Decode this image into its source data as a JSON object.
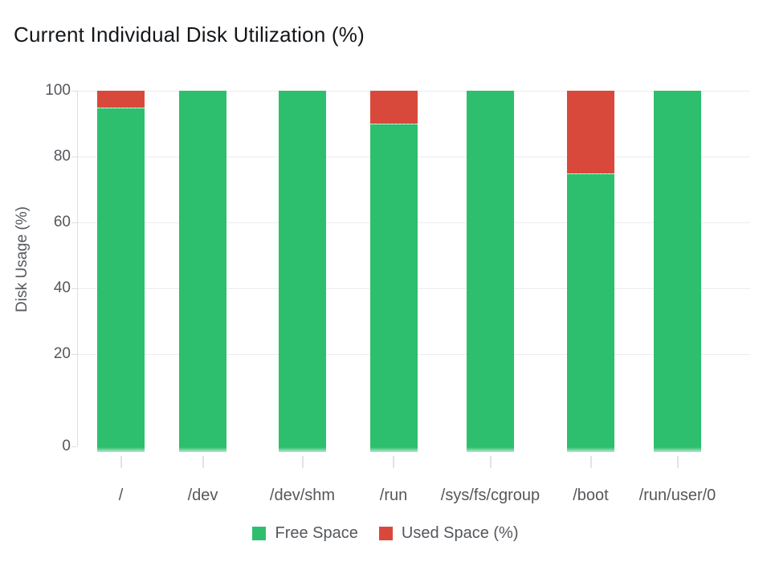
{
  "title": "Current Individual Disk Utilization (%)",
  "chart_data": {
    "type": "bar",
    "stacked": true,
    "title": "Current Individual Disk Utilization (%)",
    "categories": [
      "/",
      "/dev",
      "/dev/shm",
      "/run",
      "/sys/fs/cgroup",
      "/boot",
      "/run/user/0"
    ],
    "series": [
      {
        "name": "Free Space",
        "color": "#2dbf6d",
        "values": [
          95,
          100,
          100,
          90,
          100,
          75,
          100
        ]
      },
      {
        "name": "Used Space (%)",
        "color": "#d9493b",
        "values": [
          5,
          0,
          0,
          10,
          0,
          25,
          0
        ]
      }
    ],
    "xlabel": "",
    "ylabel": "Disk Usage (%)",
    "yticks": [
      100,
      80,
      60,
      40,
      20,
      0
    ],
    "ylim": [
      0,
      100
    ],
    "grid": true,
    "legend_position": "bottom",
    "colors": {
      "free": "#2dbf6d",
      "used": "#d9493b",
      "grid": "#ececec",
      "axis": "#dedede",
      "text": "#54575c",
      "title_text": "#14171a",
      "background": "#ffffff"
    }
  }
}
